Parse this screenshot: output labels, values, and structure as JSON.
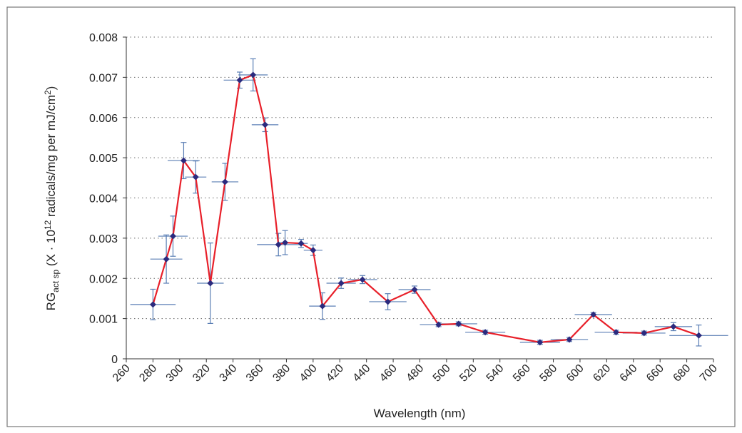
{
  "chart_data": {
    "type": "line",
    "xlabel": "Wavelength (nm)",
    "ylabel": {
      "base": "RG",
      "sub": "act sp",
      "mid": " (X · 10",
      "sup": "12",
      "rest": " radicals/mg per mJ/cm",
      "sup2": "2",
      "end": ")"
    },
    "xlim": [
      260,
      700
    ],
    "xticks": [
      260,
      280,
      300,
      320,
      340,
      360,
      380,
      400,
      420,
      440,
      460,
      480,
      500,
      520,
      540,
      560,
      580,
      600,
      620,
      640,
      660,
      680,
      700
    ],
    "ylim": [
      0,
      0.008
    ],
    "yticks": [
      0,
      0.001,
      0.002,
      0.003,
      0.004,
      0.005,
      0.006,
      0.007,
      0.008
    ],
    "grid": true,
    "series": [
      {
        "color": "#e8202a",
        "marker_color": "#2b2b7e",
        "error_color": "#5b7fb5",
        "x": [
          280,
          290,
          295,
          303,
          312,
          323,
          334,
          345,
          355,
          364,
          374,
          379,
          391,
          400,
          407,
          421,
          437,
          456,
          476,
          494,
          509,
          529,
          570,
          592,
          610,
          627,
          648,
          670,
          689
        ],
        "y": [
          0.00135,
          0.00248,
          0.00305,
          0.00493,
          0.00452,
          0.00188,
          0.0044,
          0.00693,
          0.00706,
          0.00582,
          0.00284,
          0.00289,
          0.00287,
          0.0027,
          0.00131,
          0.00188,
          0.00197,
          0.00142,
          0.00172,
          0.00085,
          0.00087,
          0.00066,
          0.00041,
          0.00048,
          0.0011,
          0.00066,
          0.00064,
          0.0008,
          0.00058
        ],
        "xerr": [
          17,
          12,
          11,
          12,
          8,
          10,
          10,
          12,
          11,
          10,
          16,
          5,
          5,
          7,
          10,
          11,
          11,
          14,
          12,
          14,
          14,
          15,
          15,
          14,
          14,
          16,
          16,
          14,
          22
        ],
        "yerr": [
          0.00038,
          0.0006,
          0.0005,
          0.00045,
          0.0004,
          0.001,
          0.00046,
          0.0002,
          0.0004,
          0.00017,
          0.00028,
          0.0003,
          0.0001,
          0.00013,
          0.00033,
          0.00013,
          0.0001,
          0.0002,
          9e-05,
          5e-05,
          5e-05,
          5e-05,
          5e-05,
          5e-05,
          5e-05,
          5e-05,
          5e-05,
          0.0001,
          0.00026
        ]
      }
    ]
  }
}
